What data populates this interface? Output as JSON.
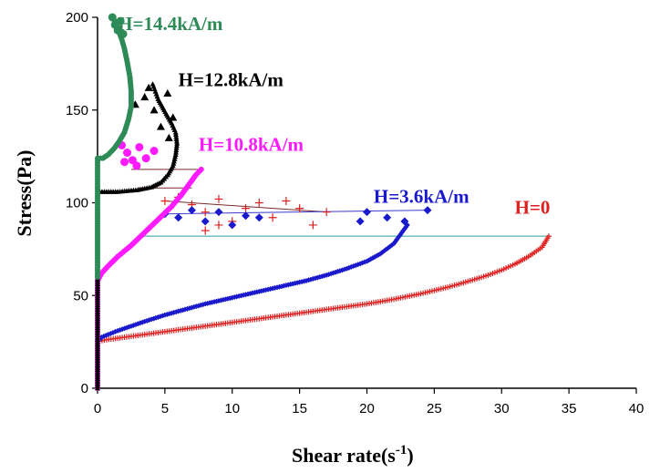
{
  "chart_data": {
    "type": "scatter",
    "title": "",
    "xlabel": "Shear rate(s",
    "xlabel_sup": "-1",
    "xlabel_suffix": ")",
    "ylabel": "Stress(Pa)",
    "xlim": [
      0,
      40
    ],
    "ylim": [
      0,
      200
    ],
    "xticks": [
      "0",
      "5",
      "10",
      "15",
      "20",
      "25",
      "30",
      "35",
      "40"
    ],
    "yticks": [
      "0",
      "50",
      "100",
      "150",
      "200"
    ],
    "grid": false,
    "legend": "none (series labelled next to curves)",
    "series": [
      {
        "name": "H=0",
        "color": "#e02020",
        "marker": "plus",
        "label_anchor": [
          33.0,
          94
        ],
        "points": [
          [
            0,
            0
          ],
          [
            0,
            5
          ],
          [
            0,
            10
          ],
          [
            0,
            15
          ],
          [
            0,
            20
          ],
          [
            0,
            25
          ],
          [
            0.5,
            26
          ],
          [
            1,
            26.5
          ],
          [
            2,
            27.5
          ],
          [
            3,
            28.5
          ],
          [
            4,
            29.5
          ],
          [
            5,
            30.5
          ],
          [
            6,
            31.5
          ],
          [
            7,
            32.5
          ],
          [
            8,
            33.5
          ],
          [
            9,
            34.5
          ],
          [
            10,
            35.5
          ],
          [
            11,
            36.5
          ],
          [
            12,
            37.5
          ],
          [
            13,
            38.5
          ],
          [
            14,
            39.5
          ],
          [
            15,
            40.5
          ],
          [
            16,
            41.5
          ],
          [
            17,
            42.5
          ],
          [
            18,
            43.5
          ],
          [
            19,
            44.5
          ],
          [
            20,
            45.5
          ],
          [
            21,
            46.7
          ],
          [
            22,
            48
          ],
          [
            23,
            49.5
          ],
          [
            24,
            51
          ],
          [
            25,
            52.7
          ],
          [
            26,
            54.5
          ],
          [
            27,
            56.5
          ],
          [
            28,
            58.7
          ],
          [
            29,
            61
          ],
          [
            30,
            63.7
          ],
          [
            31,
            67
          ],
          [
            32,
            71
          ],
          [
            33,
            76
          ],
          [
            33.5,
            82
          ]
        ],
        "scatter": [
          [
            5,
            101
          ],
          [
            6,
            103
          ],
          [
            7,
            99
          ],
          [
            8,
            95
          ],
          [
            9,
            102
          ],
          [
            10,
            90
          ],
          [
            11,
            97
          ],
          [
            12,
            100
          ],
          [
            13,
            92
          ],
          [
            14,
            101
          ],
          [
            15,
            97
          ],
          [
            16,
            88
          ],
          [
            17,
            95
          ],
          [
            8,
            85
          ],
          [
            9,
            88
          ]
        ]
      },
      {
        "name": "H=3.6kA/m",
        "color": "#1a1acc",
        "marker": "diamond",
        "label_anchor": [
          20.5,
          100
        ],
        "points": [
          [
            0,
            0
          ],
          [
            0,
            5
          ],
          [
            0,
            10
          ],
          [
            0,
            15
          ],
          [
            0,
            20
          ],
          [
            0,
            25
          ],
          [
            0.3,
            27.5
          ],
          [
            0.8,
            29
          ],
          [
            1.5,
            31
          ],
          [
            2.5,
            33.5
          ],
          [
            3.5,
            36
          ],
          [
            5,
            39.5
          ],
          [
            6.5,
            42.5
          ],
          [
            8,
            45.5
          ],
          [
            9.5,
            48
          ],
          [
            11,
            50.5
          ],
          [
            12.5,
            53
          ],
          [
            14,
            55.5
          ],
          [
            15.5,
            58
          ],
          [
            17,
            61
          ],
          [
            18.5,
            64.5
          ],
          [
            20,
            68.5
          ],
          [
            21,
            72.5
          ],
          [
            22,
            78
          ],
          [
            22.5,
            83
          ],
          [
            23,
            88
          ]
        ],
        "scatter": [
          [
            5,
            94
          ],
          [
            6,
            92
          ],
          [
            7,
            96
          ],
          [
            8,
            90
          ],
          [
            9,
            95
          ],
          [
            10,
            88
          ],
          [
            11,
            93
          ],
          [
            12,
            92
          ],
          [
            19.5,
            90
          ],
          [
            20,
            95
          ],
          [
            21.5,
            92
          ],
          [
            24.5,
            96
          ],
          [
            22.8,
            90
          ]
        ]
      },
      {
        "name": "H=10.8kA/m",
        "color": "#ff1aff",
        "marker": "circle",
        "label_anchor": [
          7.5,
          128
        ],
        "points": [
          [
            0,
            0
          ],
          [
            0,
            10
          ],
          [
            0,
            20
          ],
          [
            0,
            30
          ],
          [
            0,
            40
          ],
          [
            0,
            50
          ],
          [
            0,
            58
          ],
          [
            0.3,
            62
          ],
          [
            0.8,
            66
          ],
          [
            1.5,
            71
          ],
          [
            2.5,
            77
          ],
          [
            3.5,
            84
          ],
          [
            4.5,
            91
          ],
          [
            5.5,
            98
          ],
          [
            6.2,
            104
          ],
          [
            6.8,
            110
          ],
          [
            7.3,
            115
          ],
          [
            7.7,
            118
          ]
        ],
        "scatter": [
          [
            1.8,
            131
          ],
          [
            2.2,
            127
          ],
          [
            2.6,
            123
          ],
          [
            3.1,
            130
          ],
          [
            3.6,
            124
          ],
          [
            2,
            122
          ],
          [
            2.9,
            120
          ],
          [
            4.2,
            128
          ]
        ]
      },
      {
        "name": "H=12.8kA/m",
        "color": "#000000",
        "marker": "triangle",
        "label_anchor": [
          6,
          163
        ],
        "points": [
          [
            0,
            0
          ],
          [
            0,
            20
          ],
          [
            0,
            40
          ],
          [
            0,
            60
          ],
          [
            0,
            80
          ],
          [
            0,
            100
          ],
          [
            0,
            106
          ],
          [
            1.5,
            106
          ],
          [
            3,
            107
          ],
          [
            4,
            108.5
          ],
          [
            4.7,
            111
          ],
          [
            5.2,
            115
          ],
          [
            5.6,
            120
          ],
          [
            5.8,
            126
          ],
          [
            5.9,
            132
          ],
          [
            5.8,
            138
          ],
          [
            5.5,
            143
          ],
          [
            5.1,
            148
          ],
          [
            4.8,
            152
          ],
          [
            4.5,
            156
          ],
          [
            4.3,
            160
          ],
          [
            4.1,
            164
          ]
        ],
        "scatter": [
          [
            2.8,
            153
          ],
          [
            3.5,
            157
          ],
          [
            4.2,
            150
          ],
          [
            5.2,
            159
          ],
          [
            3.8,
            162
          ],
          [
            5.6,
            146
          ],
          [
            4.7,
            141
          ],
          [
            5.3,
            135
          ]
        ]
      },
      {
        "name": "H=14.4kA/m",
        "color": "#2e8b57",
        "marker": "circle",
        "label_anchor": [
          1.5,
          193
        ],
        "points": [
          [
            0,
            60
          ],
          [
            0,
            80
          ],
          [
            0,
            100
          ],
          [
            0,
            110
          ],
          [
            0,
            124
          ],
          [
            0.4,
            124
          ],
          [
            0.8,
            126
          ],
          [
            1.2,
            129
          ],
          [
            1.6,
            133
          ],
          [
            2,
            138
          ],
          [
            2.3,
            145
          ],
          [
            2.5,
            152
          ],
          [
            2.5,
            160
          ],
          [
            2.4,
            168
          ],
          [
            2.2,
            176
          ],
          [
            2,
            183
          ],
          [
            1.8,
            188
          ],
          [
            1.6,
            192
          ],
          [
            1.4,
            196
          ],
          [
            1.2,
            199
          ]
        ],
        "scatter": [
          [
            1.3,
            196
          ],
          [
            1.7,
            198
          ],
          [
            1.5,
            193
          ],
          [
            1.9,
            191
          ],
          [
            1.1,
            200
          ]
        ]
      }
    ],
    "connector_lines": [
      {
        "color": "#2a9d9d",
        "from": [
          3,
          82
        ],
        "to": [
          33.5,
          82
        ]
      },
      {
        "color": "#7a2a2a",
        "from": [
          5,
          101
        ],
        "to": [
          17,
          95
        ]
      },
      {
        "color": "#3b3bcc",
        "from": [
          5,
          94
        ],
        "to": [
          24.5,
          96
        ]
      },
      {
        "color": "#7a2a2a",
        "from": [
          2.5,
          118
        ],
        "to": [
          7.7,
          118
        ]
      },
      {
        "color": "#7a2a2a",
        "from": [
          3,
          108
        ],
        "to": [
          7,
          108
        ]
      }
    ]
  }
}
